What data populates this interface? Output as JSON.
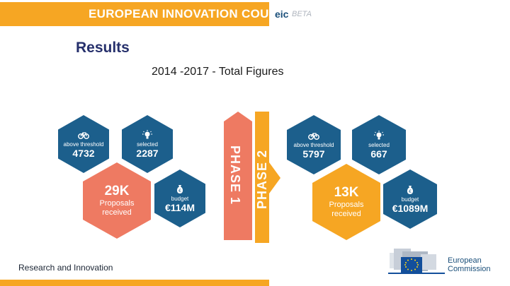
{
  "header": {
    "title": "EUROPEAN INNOVATION COUNCIL",
    "eic": "eic",
    "beta": "BETA",
    "accent_color": "#f6a623"
  },
  "page": {
    "title": "Results",
    "subtitle": "2014 -2017 - Total Figures"
  },
  "phase1": {
    "label": "PHASE 1",
    "color": "#ee7a62",
    "above_threshold": {
      "label": "above threshold",
      "value": "4732",
      "icon": "bicycle-icon"
    },
    "selected": {
      "label": "selected",
      "value": "2287",
      "icon": "lightbulb-icon"
    },
    "proposals": {
      "value": "29K",
      "line1": "Proposals",
      "line2": "received"
    },
    "budget": {
      "label": "budget",
      "value": "€114M",
      "icon": "money-bag-icon"
    }
  },
  "phase2": {
    "label": "PHASE 2",
    "color": "#f6a623",
    "above_threshold": {
      "label": "above threshold",
      "value": "5797",
      "icon": "bicycle-icon"
    },
    "selected": {
      "label": "selected",
      "value": "667",
      "icon": "lightbulb-icon"
    },
    "proposals": {
      "value": "13K",
      "line1": "Proposals",
      "line2": "received"
    },
    "budget": {
      "label": "budget",
      "value": "€1089M",
      "icon": "money-bag-icon"
    }
  },
  "footer": {
    "left_text": "Research and Innovation",
    "ec_line1": "European",
    "ec_line2": "Commission"
  },
  "colors": {
    "hex_blue": "#1c5f8c",
    "title_navy": "#26306c"
  }
}
